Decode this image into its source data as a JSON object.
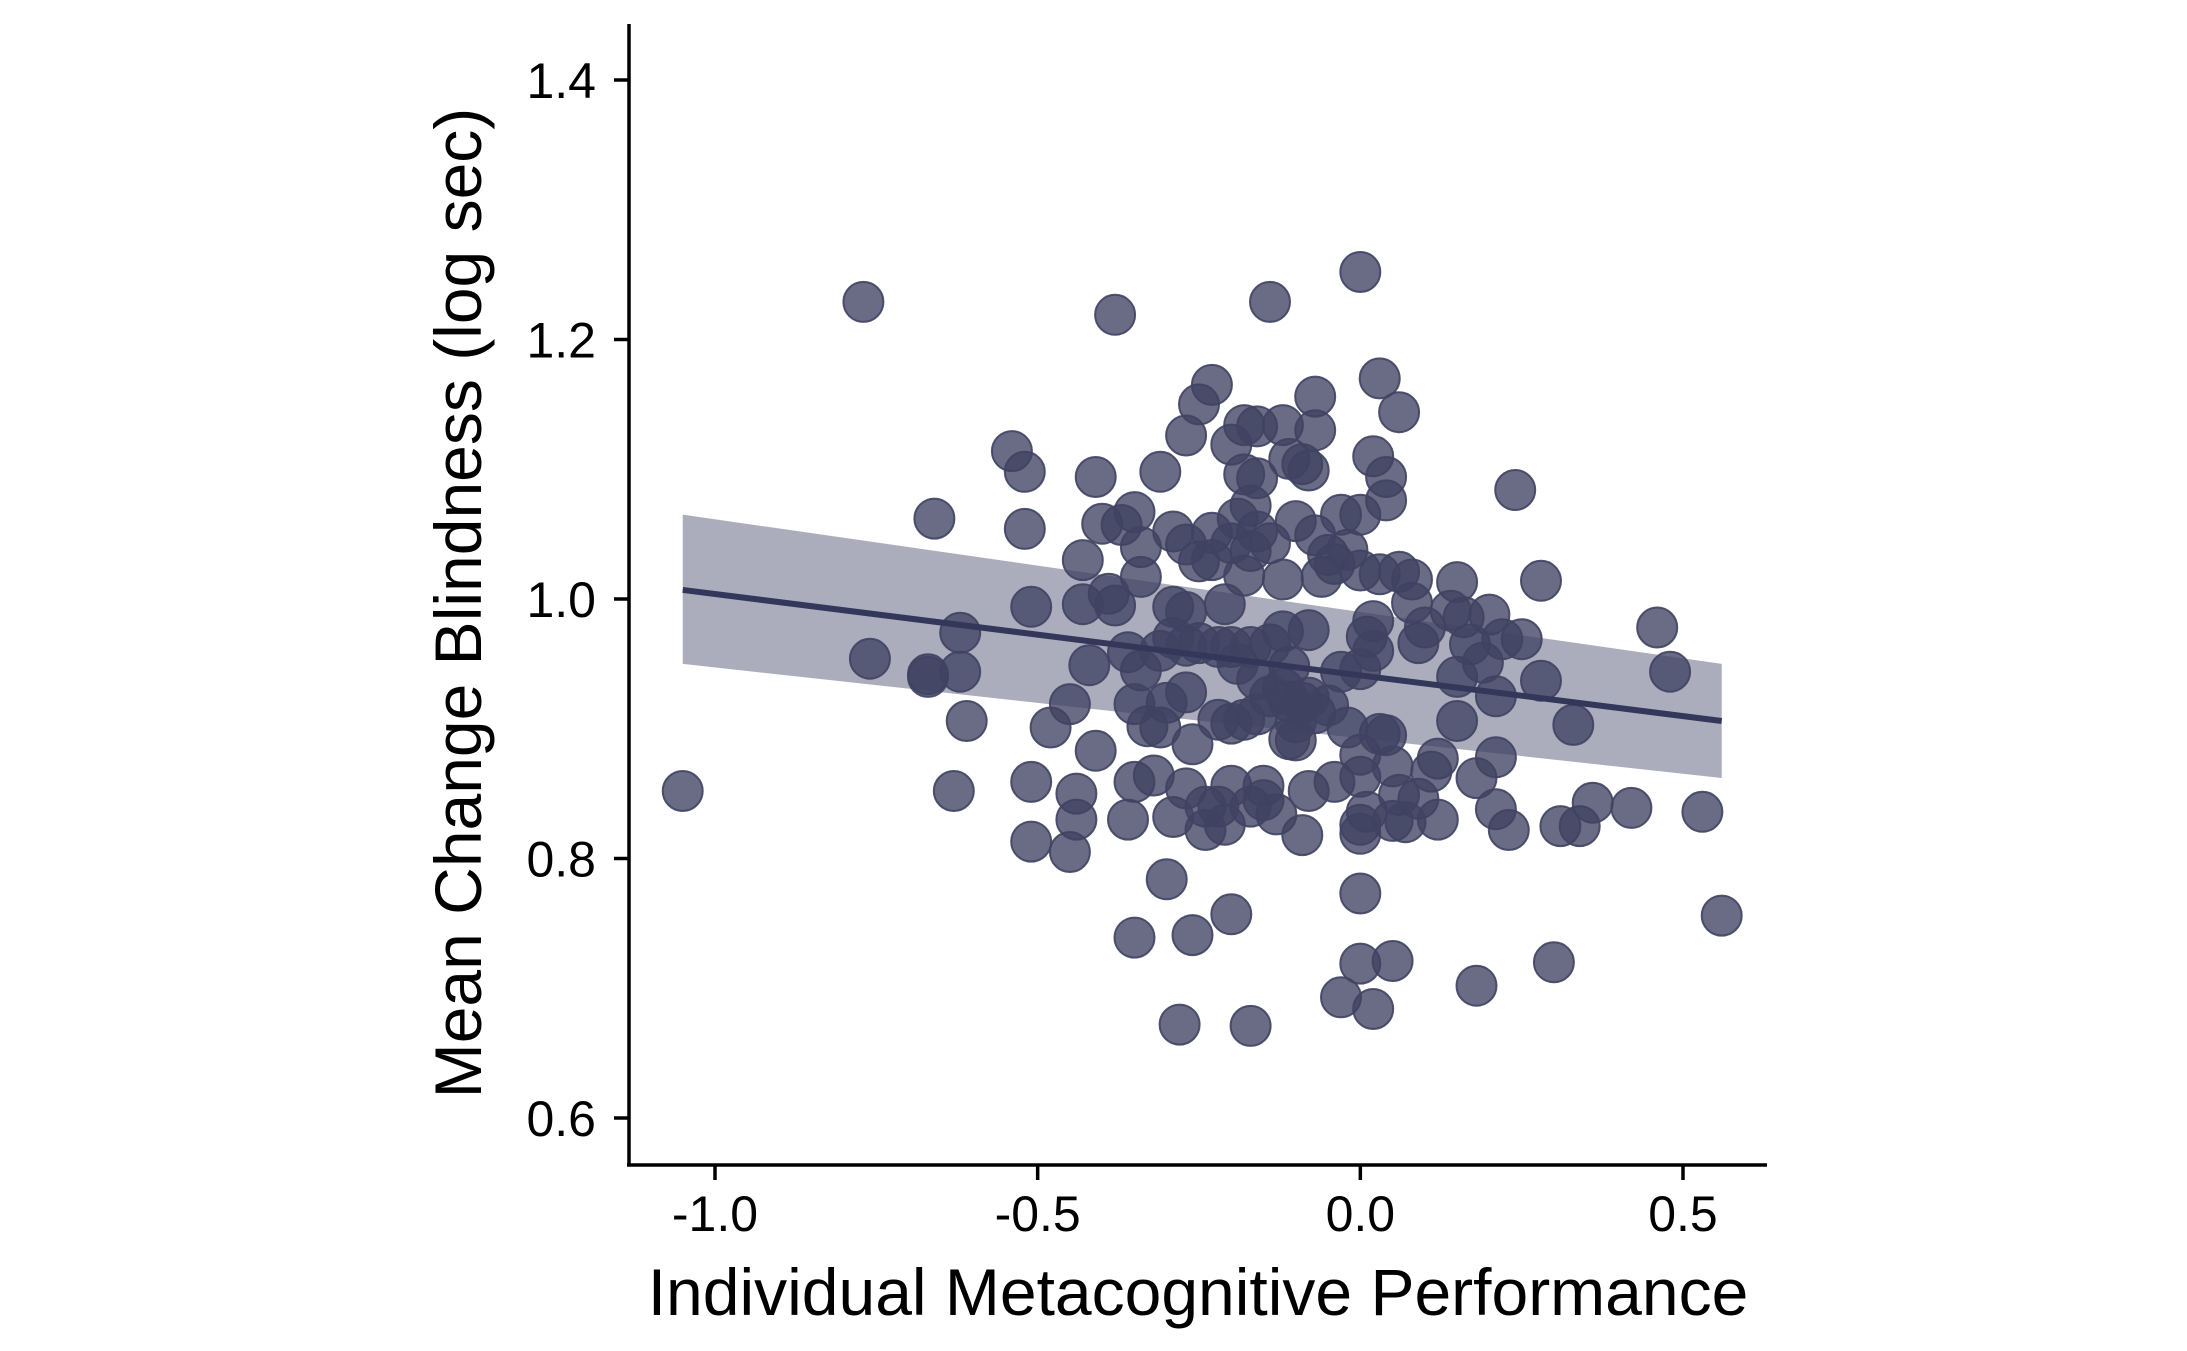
{
  "chart_data": {
    "type": "scatter",
    "title": "",
    "xlabel": "Individual Metacognitive Performance",
    "ylabel": "Mean Change Blindness (log sec)",
    "xlim": [
      -1.13,
      0.64
    ],
    "ylim": [
      0.565,
      1.445
    ],
    "x_ticks": [
      -1.0,
      -0.5,
      0.0,
      0.5
    ],
    "x_tick_labels": [
      "-1.0",
      "-0.5",
      "0.0",
      "0.5"
    ],
    "y_ticks": [
      0.6,
      0.8,
      1.0,
      1.2,
      1.4
    ],
    "y_tick_labels": [
      "0.6",
      "0.8",
      "1.0",
      "1.2",
      "1.4"
    ],
    "grid": false,
    "colors": {
      "points": "#3f4262",
      "line": "#33375a",
      "ribbon": "#a2a4b6"
    },
    "regression": {
      "x": [
        -1.05,
        0.56
      ],
      "y": [
        1.007,
        0.906
      ],
      "ci_lower": [
        0.95,
        0.862
      ],
      "ci_upper": [
        1.065,
        0.95
      ]
    },
    "points": [
      [
        -1.05,
        0.852
      ],
      [
        -0.77,
        1.229
      ],
      [
        -0.76,
        0.954
      ],
      [
        -0.67,
        0.942
      ],
      [
        -0.67,
        0.94
      ],
      [
        -0.66,
        1.062
      ],
      [
        -0.62,
        0.974
      ],
      [
        -0.62,
        0.944
      ],
      [
        -0.63,
        0.852
      ],
      [
        -0.61,
        0.906
      ],
      [
        -0.54,
        1.114
      ],
      [
        -0.52,
        1.098
      ],
      [
        -0.52,
        1.054
      ],
      [
        -0.51,
        0.994
      ],
      [
        -0.51,
        0.859
      ],
      [
        -0.51,
        0.813
      ],
      [
        -0.48,
        0.901
      ],
      [
        -0.45,
        0.919
      ],
      [
        -0.45,
        0.805
      ],
      [
        -0.44,
        0.83
      ],
      [
        -0.44,
        0.85
      ],
      [
        -0.43,
        1.03
      ],
      [
        -0.43,
        0.996
      ],
      [
        -0.42,
        0.949
      ],
      [
        -0.41,
        1.094
      ],
      [
        -0.41,
        0.883
      ],
      [
        -0.4,
        1.058
      ],
      [
        -0.39,
        1.004
      ],
      [
        -0.38,
        1.219
      ],
      [
        -0.37,
        1.057
      ],
      [
        -0.38,
        0.995
      ],
      [
        -0.36,
        0.959
      ],
      [
        -0.35,
        1.067
      ],
      [
        -0.35,
        0.919
      ],
      [
        -0.35,
        0.859
      ],
      [
        -0.36,
        0.83
      ],
      [
        -0.35,
        0.739
      ],
      [
        -0.34,
        1.04
      ],
      [
        -0.34,
        1.017
      ],
      [
        -0.34,
        0.945
      ],
      [
        -0.33,
        0.902
      ],
      [
        -0.32,
        0.864
      ],
      [
        -0.31,
        1.098
      ],
      [
        -0.31,
        0.96
      ],
      [
        -0.31,
        0.901
      ],
      [
        -0.3,
        0.92
      ],
      [
        -0.3,
        0.784
      ],
      [
        -0.29,
        1.052
      ],
      [
        -0.29,
        0.994
      ],
      [
        -0.29,
        0.97
      ],
      [
        -0.29,
        0.832
      ],
      [
        -0.28,
        0.672
      ],
      [
        -0.27,
        1.126
      ],
      [
        -0.27,
        1.042
      ],
      [
        -0.27,
        0.99
      ],
      [
        -0.27,
        0.964
      ],
      [
        -0.27,
        0.928
      ],
      [
        -0.27,
        0.854
      ],
      [
        -0.26,
        0.888
      ],
      [
        -0.26,
        0.741
      ],
      [
        -0.25,
        1.15
      ],
      [
        -0.25,
        1.029
      ],
      [
        -0.25,
        0.966
      ],
      [
        -0.24,
        0.84
      ],
      [
        -0.24,
        0.822
      ],
      [
        -0.23,
        1.165
      ],
      [
        -0.23,
        1.051
      ],
      [
        -0.23,
        1.03
      ],
      [
        -0.22,
        0.963
      ],
      [
        -0.22,
        0.907
      ],
      [
        -0.22,
        0.84
      ],
      [
        -0.21,
        0.826
      ],
      [
        -0.21,
        0.996
      ],
      [
        -0.2,
        1.119
      ],
      [
        -0.2,
        1.043
      ],
      [
        -0.2,
        0.963
      ],
      [
        -0.2,
        0.904
      ],
      [
        -0.2,
        0.856
      ],
      [
        -0.2,
        0.757
      ],
      [
        -0.19,
        1.062
      ],
      [
        -0.19,
        0.95
      ],
      [
        -0.18,
        1.134
      ],
      [
        -0.18,
        1.096
      ],
      [
        -0.18,
        1.018
      ],
      [
        -0.18,
        0.907
      ],
      [
        -0.17,
        1.072
      ],
      [
        -0.17,
        1.037
      ],
      [
        -0.17,
        0.963
      ],
      [
        -0.17,
        0.84
      ],
      [
        -0.17,
        0.671
      ],
      [
        -0.16,
        1.133
      ],
      [
        -0.16,
        1.093
      ],
      [
        -0.16,
        1.052
      ],
      [
        -0.16,
        0.938
      ],
      [
        -0.16,
        0.911
      ],
      [
        -0.15,
        0.856
      ],
      [
        -0.15,
        0.845
      ],
      [
        -0.14,
        1.229
      ],
      [
        -0.14,
        1.043
      ],
      [
        -0.14,
        0.965
      ],
      [
        -0.14,
        0.925
      ],
      [
        -0.13,
        0.834
      ],
      [
        -0.12,
        1.134
      ],
      [
        -0.12,
        1.015
      ],
      [
        -0.12,
        0.975
      ],
      [
        -0.12,
        0.931
      ],
      [
        -0.11,
        1.108
      ],
      [
        -0.11,
        0.948
      ],
      [
        -0.11,
        0.921
      ],
      [
        -0.11,
        0.892
      ],
      [
        -0.1,
        1.06
      ],
      [
        -0.1,
        0.905
      ],
      [
        -0.1,
        0.891
      ],
      [
        -0.09,
        1.104
      ],
      [
        -0.09,
        0.92
      ],
      [
        -0.09,
        0.818
      ],
      [
        -0.08,
        1.099
      ],
      [
        -0.08,
        0.976
      ],
      [
        -0.08,
        0.924
      ],
      [
        -0.08,
        0.852
      ],
      [
        -0.07,
        1.156
      ],
      [
        -0.07,
        1.13
      ],
      [
        -0.07,
        1.049
      ],
      [
        -0.07,
        0.912
      ],
      [
        -0.06,
        1.017
      ],
      [
        -0.05,
        1.034
      ],
      [
        -0.05,
        0.918
      ],
      [
        -0.04,
        1.027
      ],
      [
        -0.04,
        0.859
      ],
      [
        -0.03,
        1.065
      ],
      [
        -0.03,
        0.944
      ],
      [
        -0.03,
        0.693
      ],
      [
        -0.02,
        1.038
      ],
      [
        -0.02,
        0.901
      ],
      [
        0.0,
        1.252
      ],
      [
        0.0,
        1.065
      ],
      [
        0.0,
        1.022
      ],
      [
        0.0,
        0.946
      ],
      [
        0.0,
        0.88
      ],
      [
        0.0,
        0.863
      ],
      [
        0.0,
        0.826
      ],
      [
        0.0,
        0.819
      ],
      [
        0.0,
        0.773
      ],
      [
        0.0,
        0.719
      ],
      [
        0.01,
        0.971
      ],
      [
        0.01,
        0.836
      ],
      [
        0.02,
        1.11
      ],
      [
        0.02,
        0.983
      ],
      [
        0.02,
        0.96
      ],
      [
        0.02,
        0.684
      ],
      [
        0.03,
        1.17
      ],
      [
        0.03,
        1.019
      ],
      [
        0.03,
        0.896
      ],
      [
        0.04,
        1.094
      ],
      [
        0.04,
        1.076
      ],
      [
        0.04,
        0.895
      ],
      [
        0.05,
        0.871
      ],
      [
        0.05,
        0.829
      ],
      [
        0.05,
        0.721
      ],
      [
        0.06,
        1.144
      ],
      [
        0.06,
        1.021
      ],
      [
        0.06,
        0.849
      ],
      [
        0.07,
        0.828
      ],
      [
        0.08,
        1.015
      ],
      [
        0.08,
        0.997
      ],
      [
        0.09,
        0.966
      ],
      [
        0.09,
        0.846
      ],
      [
        0.1,
        0.978
      ],
      [
        0.11,
        0.867
      ],
      [
        0.12,
        0.877
      ],
      [
        0.12,
        0.83
      ],
      [
        0.14,
        0.991
      ],
      [
        0.15,
        0.94
      ],
      [
        0.15,
        1.013
      ],
      [
        0.15,
        0.906
      ],
      [
        0.16,
        0.986
      ],
      [
        0.17,
        0.965
      ],
      [
        0.18,
        0.862
      ],
      [
        0.18,
        0.702
      ],
      [
        0.19,
        0.951
      ],
      [
        0.2,
        0.988
      ],
      [
        0.21,
        0.925
      ],
      [
        0.21,
        0.878
      ],
      [
        0.21,
        0.838
      ],
      [
        0.22,
        0.969
      ],
      [
        0.23,
        0.822
      ],
      [
        0.24,
        1.084
      ],
      [
        0.25,
        0.969
      ],
      [
        0.28,
        1.014
      ],
      [
        0.28,
        0.937
      ],
      [
        0.3,
        0.72
      ],
      [
        0.31,
        0.825
      ],
      [
        0.33,
        0.903
      ],
      [
        0.34,
        0.825
      ],
      [
        0.36,
        0.843
      ],
      [
        0.42,
        0.839
      ],
      [
        0.46,
        0.978
      ],
      [
        0.48,
        0.944
      ],
      [
        0.53,
        0.836
      ],
      [
        0.56,
        0.756
      ]
    ]
  }
}
